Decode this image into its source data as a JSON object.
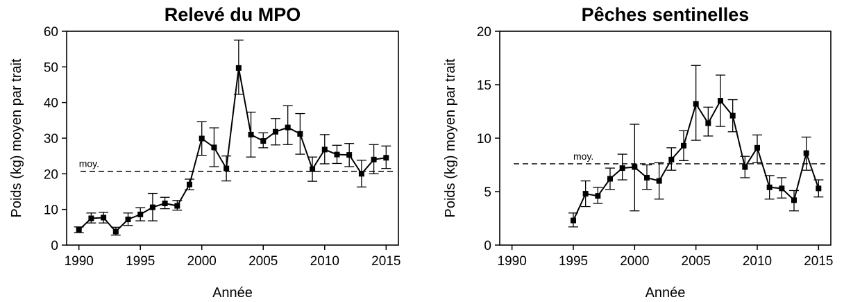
{
  "chart_data": [
    {
      "type": "line",
      "title": "Relevé du MPO",
      "xlabel": "Année",
      "ylabel": "Poids (kg) moyen par trait",
      "xlim": [
        1989,
        2016
      ],
      "ylim": [
        0,
        60
      ],
      "xticks": [
        1990,
        1995,
        2000,
        2005,
        2010,
        2015
      ],
      "yticks": [
        0,
        10,
        20,
        30,
        40,
        50,
        60
      ],
      "grid": false,
      "legend": "none",
      "series": [
        {
          "x": [
            1990,
            1991,
            1992,
            1993,
            1994,
            1995,
            1996,
            1997,
            1998,
            1999,
            2000,
            2001,
            2002,
            2003,
            2004,
            2005,
            2006,
            2007,
            2008,
            2009,
            2010,
            2011,
            2012,
            2013,
            2014,
            2015
          ],
          "y": [
            4.2,
            7.5,
            7.7,
            3.8,
            7.2,
            8.6,
            10.6,
            11.7,
            11.0,
            17.0,
            29.9,
            27.4,
            21.5,
            49.7,
            31.0,
            29.2,
            31.8,
            33.0,
            31.2,
            21.3,
            26.8,
            25.4,
            25.3,
            20.0,
            24.0,
            24.5
          ],
          "y_low": [
            3.5,
            6.2,
            6.2,
            2.8,
            5.5,
            6.8,
            6.8,
            10.2,
            9.8,
            15.5,
            25.2,
            22.0,
            18.0,
            42.3,
            24.7,
            27.3,
            28.1,
            28.2,
            25.5,
            17.9,
            22.8,
            22.9,
            22.0,
            16.3,
            20.0,
            21.5
          ],
          "y_high": [
            5.1,
            9.0,
            9.2,
            5.0,
            9.0,
            10.5,
            14.5,
            13.4,
            12.5,
            18.5,
            34.6,
            32.9,
            25.0,
            57.5,
            37.3,
            31.5,
            35.5,
            39.1,
            36.9,
            24.7,
            31.0,
            28.0,
            28.5,
            23.8,
            28.2,
            27.8
          ]
        }
      ],
      "reference_line": {
        "label": "moy.",
        "value": 20.7,
        "style": "dashed"
      }
    },
    {
      "type": "line",
      "title": "Pêches sentinelles",
      "xlabel": "Année",
      "ylabel": "Poids (kg) moyen par trait",
      "xlim": [
        1989,
        2016
      ],
      "ylim": [
        0,
        20
      ],
      "xticks": [
        1990,
        1995,
        2000,
        2005,
        2010,
        2015
      ],
      "yticks": [
        0,
        5,
        10,
        15,
        20
      ],
      "grid": false,
      "legend": "none",
      "series": [
        {
          "x": [
            1995,
            1996,
            1997,
            1998,
            1999,
            2000,
            2001,
            2002,
            2003,
            2004,
            2005,
            2006,
            2007,
            2008,
            2009,
            2010,
            2011,
            2012,
            2013,
            2014,
            2015
          ],
          "y": [
            2.3,
            4.8,
            4.6,
            6.2,
            7.2,
            7.3,
            6.3,
            6.0,
            8.0,
            9.3,
            13.2,
            11.4,
            13.5,
            12.1,
            7.3,
            9.1,
            5.4,
            5.3,
            4.2,
            8.6,
            5.3
          ],
          "y_low": [
            1.7,
            3.6,
            3.9,
            5.2,
            6.1,
            3.2,
            5.2,
            4.3,
            7.0,
            7.9,
            9.8,
            10.2,
            11.1,
            10.6,
            6.3,
            7.7,
            4.3,
            4.4,
            3.2,
            7.0,
            4.5
          ],
          "y_high": [
            3.0,
            6.0,
            5.4,
            7.2,
            8.5,
            11.3,
            7.5,
            7.7,
            9.1,
            10.7,
            16.8,
            12.9,
            15.9,
            13.6,
            8.3,
            10.3,
            6.5,
            6.3,
            5.1,
            10.1,
            6.1
          ]
        }
      ],
      "reference_line": {
        "label": "moy.",
        "value": 7.6,
        "style": "dashed"
      }
    }
  ]
}
